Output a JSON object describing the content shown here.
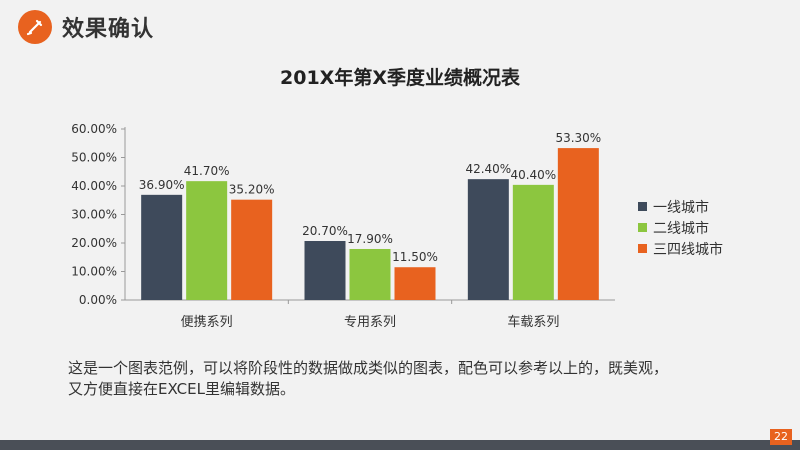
{
  "header": {
    "title": "效果确认"
  },
  "colors": {
    "accent": "#e8621f",
    "series1": "#3e4a5b",
    "series2": "#8cc63f",
    "series3": "#e8621f"
  },
  "chart_data": {
    "type": "bar",
    "title": "201X年第X季度业绩概况表",
    "categories": [
      "便携系列",
      "专用系列",
      "车载系列"
    ],
    "series": [
      {
        "name": "一线城市",
        "values": [
          36.9,
          20.7,
          42.4
        ],
        "labels": [
          "36.90%",
          "20.70%",
          "42.40%"
        ]
      },
      {
        "name": "二线城市",
        "values": [
          41.7,
          17.9,
          40.4
        ],
        "labels": [
          "41.70%",
          "17.90%",
          "40.40%"
        ]
      },
      {
        "name": "三四线城市",
        "values": [
          35.2,
          11.5,
          53.3
        ],
        "labels": [
          "35.20%",
          "11.50%",
          "53.30%"
        ]
      }
    ],
    "ylim": [
      0,
      60
    ],
    "yticks": [
      "0.00%",
      "10.00%",
      "20.00%",
      "30.00%",
      "40.00%",
      "50.00%",
      "60.00%"
    ],
    "grid": false,
    "legend_position": "right"
  },
  "caption": {
    "line1": "这是一个图表范例，可以将阶段性的数据做成类似的图表，配色可以参考以上的，既美观，",
    "line2": "又方便直接在EXCEL里编辑数据。"
  },
  "footer": {
    "page_number": "22"
  }
}
